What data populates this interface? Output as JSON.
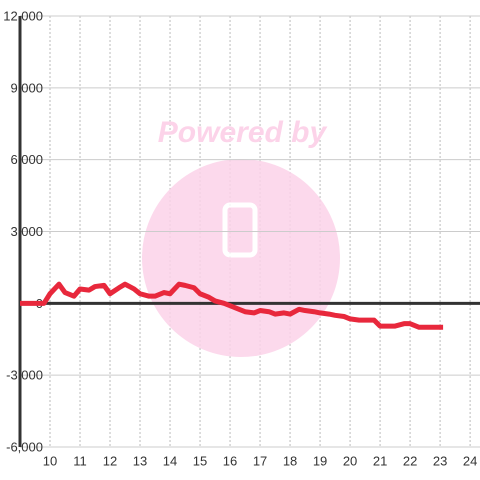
{
  "chart_data": {
    "type": "line",
    "watermark": "Powered by",
    "x": [
      9.0,
      9.8,
      10.0,
      10.3,
      10.5,
      10.8,
      11.0,
      11.3,
      11.5,
      11.8,
      12.0,
      12.3,
      12.5,
      12.8,
      13.0,
      13.3,
      13.5,
      13.8,
      14.0,
      14.3,
      14.5,
      14.8,
      15.0,
      15.3,
      15.5,
      15.8,
      16.0,
      16.3,
      16.5,
      16.8,
      17.0,
      17.3,
      17.5,
      17.8,
      18.0,
      18.3,
      18.5,
      18.8,
      19.0,
      19.3,
      19.5,
      19.8,
      20.0,
      20.3,
      20.5,
      20.8,
      21.0,
      21.3,
      21.5,
      21.8,
      22.0,
      22.3,
      22.5,
      22.8,
      23.1
    ],
    "series": [
      {
        "color": "#e8283c",
        "values": [
          0,
          0,
          400,
          800,
          450,
          300,
          600,
          550,
          700,
          750,
          400,
          650,
          800,
          600,
          400,
          300,
          300,
          450,
          400,
          800,
          750,
          650,
          400,
          250,
          100,
          0,
          -100,
          -250,
          -350,
          -400,
          -300,
          -350,
          -450,
          -400,
          -450,
          -250,
          -300,
          -350,
          -400,
          -450,
          -500,
          -550,
          -650,
          -700,
          -700,
          -700,
          -950,
          -950,
          -950,
          -850,
          -850,
          -1000,
          -1000,
          -1000,
          -1000
        ]
      }
    ],
    "xlim": [
      9,
      24.33
    ],
    "xticks": [
      10,
      11,
      12,
      13,
      14,
      15,
      16,
      17,
      18,
      19,
      20,
      21,
      22,
      23,
      24
    ],
    "ylim": [
      -6000,
      12000
    ],
    "yticks": [
      {
        "value": -6000,
        "label": "-6,000"
      },
      {
        "value": -3000,
        "label": "-3,000"
      },
      0,
      {
        "value": 3000,
        "label": "3,000"
      },
      {
        "value": 6000,
        "label": "6,000"
      },
      {
        "value": 9000,
        "label": "9,000"
      },
      {
        "value": 12000,
        "label": "12,000"
      }
    ],
    "grid": true
  }
}
